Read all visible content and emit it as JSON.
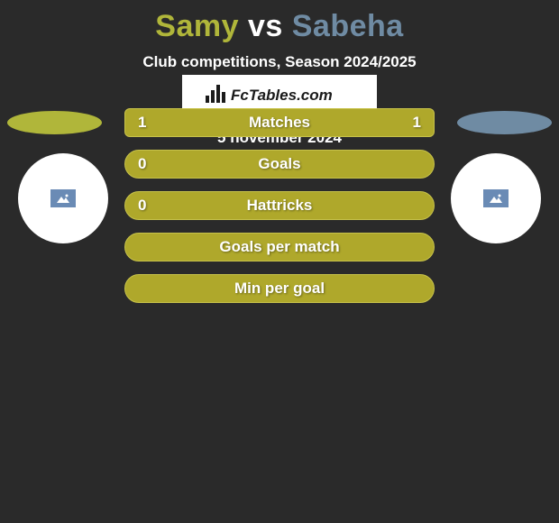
{
  "background_color": "#2a2a2a",
  "title": {
    "left": {
      "text": "Samy",
      "color": "#b0b63a"
    },
    "vs": {
      "text": "vs",
      "color": "#ffffff"
    },
    "right": {
      "text": "Sabeha",
      "color": "#6f8ba3"
    }
  },
  "title_fontsize": 34,
  "subtitle": "Club competitions, Season 2024/2025",
  "subtitle_fontsize": 17,
  "subtitle_color": "#ffffff",
  "sides": {
    "left": {
      "ellipse_color": "#b0b63a",
      "circle_color": "#ffffff",
      "icon_bg": "#6a8bb5",
      "icon_fg": "#ffffff"
    },
    "right": {
      "ellipse_color": "#6f8ba3",
      "circle_color": "#ffffff",
      "icon_bg": "#6a8bb5",
      "icon_fg": "#ffffff"
    }
  },
  "stats": {
    "row_bg": "#afa82b",
    "row_border": "#c7c24a",
    "header_bg": "#afa82b",
    "label_color": "#ffffff",
    "value_color": "#ffffff",
    "label_fontsize": 17,
    "rows": [
      {
        "label": "Matches",
        "left": "1",
        "right": "1",
        "header": true
      },
      {
        "label": "Goals",
        "left": "0",
        "right": ""
      },
      {
        "label": "Hattricks",
        "left": "0",
        "right": ""
      },
      {
        "label": "Goals per match",
        "left": "",
        "right": ""
      },
      {
        "label": "Min per goal",
        "left": "",
        "right": ""
      }
    ]
  },
  "brand": {
    "text": "FcTables.com",
    "bg": "#ffffff",
    "fg": "#1a1a1a",
    "fontsize": 17
  },
  "date": "5 november 2024",
  "date_color": "#ffffff",
  "date_fontsize": 17
}
